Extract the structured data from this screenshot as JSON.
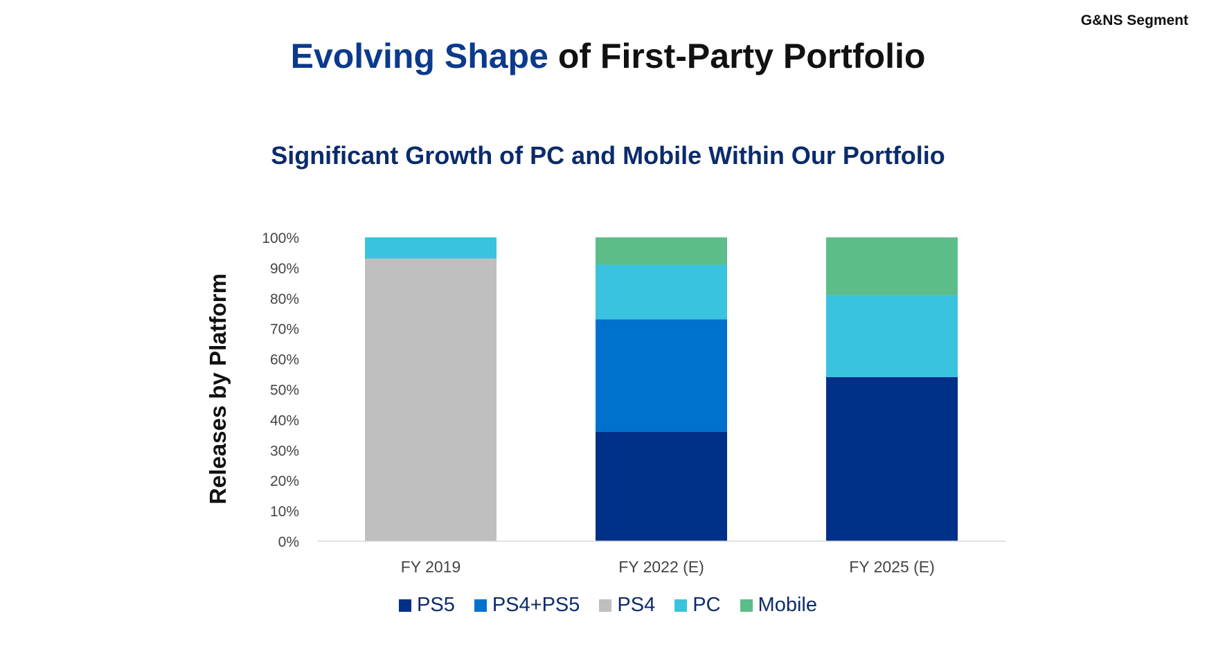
{
  "header": {
    "segment": "G&NS Segment",
    "title_accent": "Evolving Shape",
    "title_rest": "of First-Party Portfolio",
    "subtitle": "Significant Growth of PC and Mobile Within Our Portfolio"
  },
  "chart_data": {
    "type": "bar",
    "stacked": true,
    "title": "Significant Growth of PC and Mobile Within Our Portfolio",
    "ylabel": "Releases by Platform",
    "xlabel": "",
    "ylim": [
      0,
      100
    ],
    "yticks": [
      "0%",
      "10%",
      "20%",
      "30%",
      "40%",
      "50%",
      "60%",
      "70%",
      "80%",
      "90%",
      "100%"
    ],
    "categories": [
      "FY 2019",
      "FY 2022 (E)",
      "FY 2025 (E)"
    ],
    "series": [
      {
        "name": "PS5",
        "color": "#003087",
        "values": [
          0,
          36,
          54
        ]
      },
      {
        "name": "PS4+PS5",
        "color": "#0072ce",
        "values": [
          0,
          37,
          0
        ]
      },
      {
        "name": "PS4",
        "color": "#bfbfbf",
        "values": [
          93,
          0,
          0
        ]
      },
      {
        "name": "PC",
        "color": "#3ac3de",
        "values": [
          7,
          18,
          27
        ]
      },
      {
        "name": "Mobile",
        "color": "#5cbd88",
        "values": [
          0,
          9,
          19
        ]
      }
    ],
    "legend_position": "bottom",
    "grid": false
  }
}
